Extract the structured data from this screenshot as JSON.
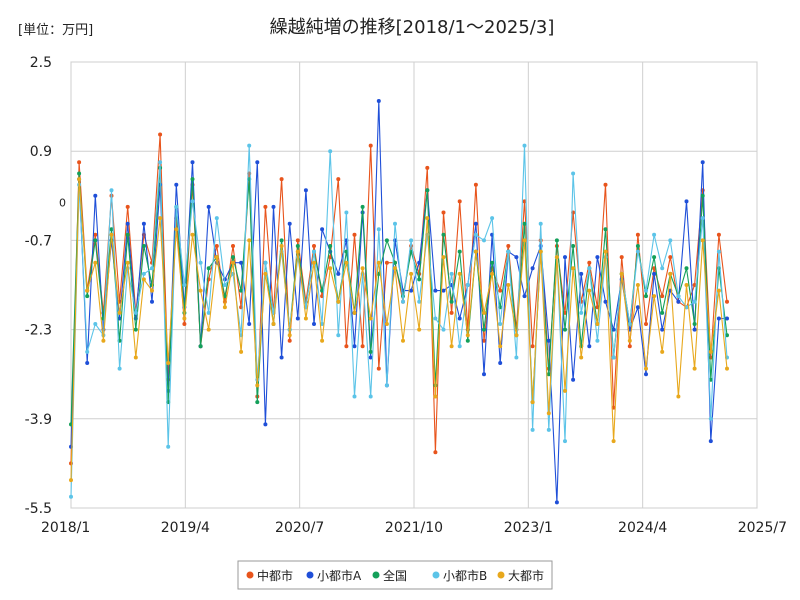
{
  "chart_data": {
    "type": "line",
    "title": "繰越純増の推移[2018/1～2025/3]",
    "unit_label": "[単位：万円]",
    "xlabel": "",
    "ylabel": "",
    "x_tick_labels": [
      "2018/1",
      "2019/4",
      "2020/7",
      "2021/10",
      "2023/1",
      "2024/4",
      "2025/7"
    ],
    "y_tick_labels": [
      "2.5",
      "0.9",
      "0",
      "-0.7",
      "-2.3",
      "-3.9",
      "-5.5"
    ],
    "ylim": [
      -5.5,
      2.5
    ],
    "x_start": "2018/1",
    "x_end": "2025/7",
    "grid": true,
    "legend_position": "bottom",
    "zero_line": true,
    "series": [
      {
        "name": "中都市",
        "color": "#e8541c",
        "values": [
          -4.7,
          0.7,
          -1.6,
          -0.6,
          -2.0,
          0.1,
          -1.8,
          -0.1,
          -2.0,
          -0.6,
          -1.1,
          1.2,
          -3.2,
          -0.3,
          -2.2,
          0.3,
          -2.6,
          -1.4,
          -0.8,
          -1.8,
          -0.8,
          -1.9,
          0.5,
          -3.5,
          -0.1,
          -2.0,
          0.4,
          -2.5,
          -0.7,
          -1.8,
          -0.8,
          -1.7,
          -1.0,
          0.4,
          -2.6,
          -0.6,
          -2.6,
          1.0,
          -3.0,
          -1.1,
          -1.1,
          -1.8,
          -0.8,
          -1.3,
          0.6,
          -4.5,
          -0.2,
          -2.0,
          0.0,
          -2.3,
          0.3,
          -2.5,
          -1.2,
          -1.6,
          -0.8,
          -2.3,
          0.0,
          -2.6,
          -0.7,
          -3.0,
          -0.8,
          -2.0,
          -0.2,
          -1.8,
          -1.1,
          -1.9,
          0.3,
          -3.7,
          -1.0,
          -2.6,
          -0.6,
          -2.2,
          -1.2,
          -1.7,
          -1.0,
          -1.8,
          -1.9,
          -1.5,
          0.2,
          -2.8,
          -0.6,
          -1.8
        ]
      },
      {
        "name": "小都市A",
        "color": "#1f4fd8",
        "values": [
          -4.4,
          0.4,
          -2.9,
          0.1,
          -2.3,
          -0.7,
          -2.1,
          -0.4,
          -2.1,
          -0.4,
          -1.8,
          0.3,
          -3.4,
          0.3,
          -1.9,
          0.7,
          -2.6,
          -0.1,
          -1.1,
          -1.4,
          -1.1,
          -1.1,
          -2.2,
          0.7,
          -4.0,
          -0.1,
          -2.8,
          -0.4,
          -2.1,
          0.2,
          -2.2,
          -0.5,
          -0.9,
          -1.3,
          -0.7,
          -2.6,
          -0.2,
          -2.8,
          1.8,
          -3.3,
          -0.7,
          -1.6,
          -1.6,
          -1.1,
          0.2,
          -1.6,
          -1.6,
          -1.5,
          -2.1,
          -1.5,
          -0.4,
          -3.1,
          -0.6,
          -2.9,
          -0.9,
          -1.0,
          -1.7,
          -1.2,
          -0.8,
          -2.5,
          -5.4,
          -1.0,
          -3.2,
          -1.3,
          -2.6,
          -1.0,
          -1.8,
          -2.3,
          -1.4,
          -2.3,
          -1.9,
          -3.1,
          -1.3,
          -2.3,
          -1.6,
          -1.8,
          0.0,
          -2.3,
          0.7,
          -4.3,
          -2.1,
          -2.1
        ]
      },
      {
        "name": "全国",
        "color": "#14a05a",
        "values": [
          -4.0,
          0.5,
          -1.7,
          -0.7,
          -2.1,
          -0.5,
          -2.5,
          -0.6,
          -2.3,
          -0.8,
          -1.5,
          0.6,
          -3.6,
          -0.1,
          -2.0,
          0.4,
          -2.6,
          -1.2,
          -1.0,
          -1.7,
          -1.0,
          -1.6,
          0.4,
          -3.6,
          -1.1,
          -2.2,
          -0.7,
          -2.3,
          -0.8,
          -1.9,
          -0.9,
          -1.6,
          -0.8,
          -1.8,
          -0.9,
          -2.0,
          -0.1,
          -2.7,
          -1.3,
          -0.7,
          -1.1,
          -1.7,
          -0.9,
          -1.4,
          0.2,
          -3.3,
          -0.6,
          -1.8,
          -0.9,
          -2.5,
          -0.9,
          -2.3,
          -1.1,
          -1.9,
          -0.9,
          -2.4,
          -0.4,
          -3.6,
          -0.9,
          -3.1,
          -0.7,
          -2.3,
          -0.8,
          -2.6,
          -1.2,
          -2.2,
          -0.5,
          -2.8,
          -1.3,
          -2.2,
          -0.8,
          -1.7,
          -1.0,
          -2.0,
          -1.3,
          -1.7,
          -1.2,
          -2.2,
          0.1,
          -3.2,
          -1.2,
          -2.4
        ]
      },
      {
        "name": "小都市B",
        "color": "#5cc4e8",
        "values": [
          -5.3,
          0.3,
          -2.7,
          -2.2,
          -2.4,
          0.2,
          -3.0,
          -1.2,
          -2.0,
          -1.3,
          -1.2,
          0.7,
          -4.4,
          -0.1,
          -1.5,
          0.0,
          -1.1,
          -2.0,
          -0.3,
          -1.5,
          -1.3,
          -2.4,
          1.0,
          -3.2,
          -1.1,
          -2.0,
          -0.9,
          -2.3,
          -1.0,
          -1.9,
          -0.9,
          -2.2,
          0.9,
          -2.4,
          -0.2,
          -3.5,
          -1.3,
          -3.5,
          -0.5,
          -3.3,
          -0.4,
          -1.8,
          -0.7,
          -1.8,
          -0.6,
          -2.1,
          -2.3,
          -1.3,
          -2.6,
          -1.5,
          -0.6,
          -0.7,
          -0.3,
          -2.2,
          -0.9,
          -2.8,
          1.0,
          -4.1,
          -0.4,
          -4.1,
          -1.0,
          -4.3,
          0.5,
          -2.0,
          -1.2,
          -2.5,
          -1.0,
          -2.8,
          -1.3,
          -2.2,
          -0.9,
          -1.6,
          -0.6,
          -1.2,
          -0.7,
          -1.7,
          -1.9,
          -1.8,
          -0.3,
          -3.9,
          -0.9,
          -2.8
        ]
      },
      {
        "name": "大都市",
        "color": "#e8a81c",
        "values": [
          -5.0,
          0.4,
          -1.6,
          -1.1,
          -2.5,
          -0.6,
          -2.0,
          -1.1,
          -2.8,
          -1.4,
          -1.6,
          -0.3,
          -2.9,
          -0.5,
          -2.1,
          -0.6,
          -1.6,
          -2.3,
          -1.0,
          -1.9,
          -1.1,
          -2.7,
          -0.7,
          -3.3,
          -1.3,
          -2.2,
          -0.8,
          -2.4,
          -0.9,
          -2.1,
          -1.1,
          -2.5,
          -1.2,
          -1.8,
          -1.1,
          -2.0,
          -1.2,
          -2.1,
          -1.1,
          -2.2,
          -1.2,
          -2.5,
          -1.3,
          -2.3,
          -0.3,
          -3.5,
          -1.0,
          -2.6,
          -1.3,
          -2.4,
          -0.9,
          -2.0,
          -1.3,
          -2.6,
          -1.5,
          -2.4,
          -0.7,
          -3.6,
          -0.9,
          -3.8,
          -1.0,
          -3.4,
          -1.2,
          -2.8,
          -1.6,
          -2.2,
          -0.9,
          -4.3,
          -1.3,
          -2.5,
          -1.5,
          -3.0,
          -1.7,
          -2.7,
          -1.3,
          -3.5,
          -1.5,
          -3.0,
          -0.7,
          -2.7,
          -1.6,
          -3.0
        ]
      }
    ]
  }
}
